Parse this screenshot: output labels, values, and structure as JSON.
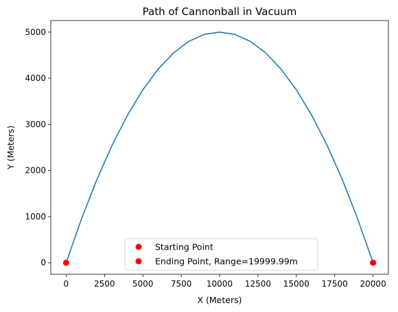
{
  "chart_data": {
    "type": "line",
    "title": "Path of Cannonball in Vacuum",
    "xlabel": "X (Meters)",
    "ylabel": "Y (Meters)",
    "xlim": [
      -1000,
      21000
    ],
    "ylim": [
      -250,
      5250
    ],
    "xticks": [
      0,
      2500,
      5000,
      7500,
      10000,
      12500,
      15000,
      17500,
      20000
    ],
    "yticks": [
      0,
      1000,
      2000,
      3000,
      4000,
      5000
    ],
    "grid": false,
    "legend_position": "bottom-center",
    "trajectory": {
      "color": "#1f77b4",
      "range": 19999.99,
      "max_height": 5000,
      "x": [
        0,
        1000,
        2000,
        3000,
        4000,
        5000,
        6000,
        7000,
        8000,
        9000,
        10000,
        11000,
        12000,
        13000,
        14000,
        15000,
        16000,
        17000,
        18000,
        19000,
        19999.99
      ],
      "y": [
        0,
        950,
        1800,
        2550,
        3200,
        3750,
        4200,
        4550,
        4800,
        4950,
        5000,
        4950,
        4800,
        4550,
        4200,
        3750,
        3200,
        2550,
        1800,
        950,
        0
      ]
    },
    "points": [
      {
        "name": "Starting Point",
        "x": 0,
        "y": 0,
        "color": "#ff0000"
      },
      {
        "name": "Ending Point, Range=19999.99m",
        "x": 19999.99,
        "y": 0,
        "color": "#ff0000"
      }
    ]
  }
}
